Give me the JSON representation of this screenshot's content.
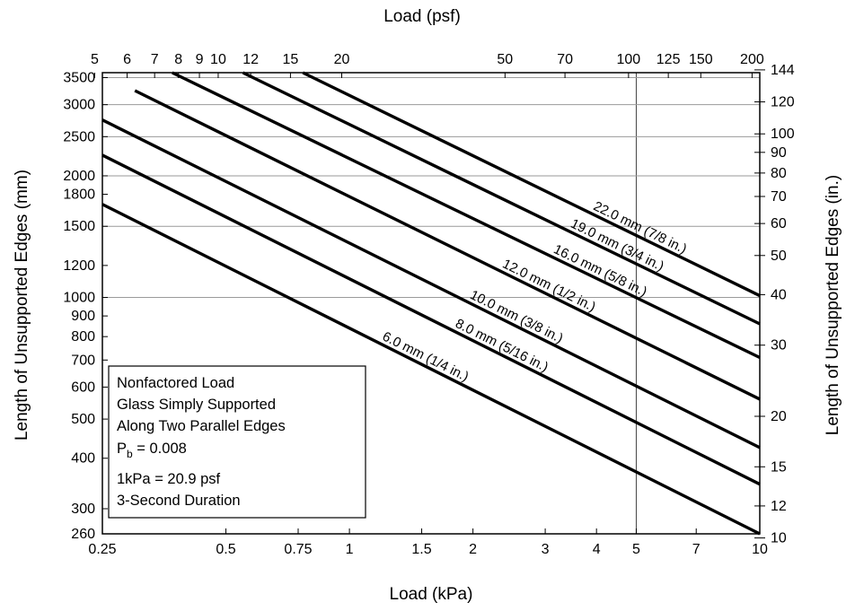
{
  "chart_data": {
    "type": "line",
    "x_scale": "log",
    "y_scale": "log",
    "grid": true,
    "xlabel_bottom": "Load (kPa)",
    "xlabel_top": "Load (psf)",
    "ylabel_left": "Length of Unsupported Edges (mm)",
    "ylabel_right": "Length of Unsupported Edges (in.)",
    "xlim": [
      0.25,
      10
    ],
    "ylim": [
      260,
      3600
    ],
    "x_ticks_bottom": [
      {
        "value": 0.25,
        "label": "0.25"
      },
      {
        "value": 0.5,
        "label": "0.5"
      },
      {
        "value": 0.75,
        "label": "0.75"
      },
      {
        "value": 1,
        "label": "1"
      },
      {
        "value": 1.5,
        "label": "1.5"
      },
      {
        "value": 2,
        "label": "2"
      },
      {
        "value": 3,
        "label": "3"
      },
      {
        "value": 4,
        "label": "4"
      },
      {
        "value": 5,
        "label": "5"
      },
      {
        "value": 7,
        "label": "7"
      },
      {
        "value": 10,
        "label": "10"
      }
    ],
    "x_ticks_top": [
      {
        "value": 5,
        "label": "5"
      },
      {
        "value": 6,
        "label": "6"
      },
      {
        "value": 7,
        "label": "7"
      },
      {
        "value": 8,
        "label": "8"
      },
      {
        "value": 9,
        "label": "9"
      },
      {
        "value": 10,
        "label": "10"
      },
      {
        "value": 12,
        "label": "12"
      },
      {
        "value": 15,
        "label": "15"
      },
      {
        "value": 20,
        "label": "20"
      },
      {
        "value": 50,
        "label": "50"
      },
      {
        "value": 70,
        "label": "70"
      },
      {
        "value": 100,
        "label": "100"
      },
      {
        "value": 125,
        "label": "125"
      },
      {
        "value": 150,
        "label": "150"
      },
      {
        "value": 200,
        "label": "200"
      }
    ],
    "y_ticks_left": [
      {
        "value": 260,
        "label": "260"
      },
      {
        "value": 300,
        "label": "300"
      },
      {
        "value": 400,
        "label": "400"
      },
      {
        "value": 500,
        "label": "500"
      },
      {
        "value": 600,
        "label": "600"
      },
      {
        "value": 700,
        "label": "700"
      },
      {
        "value": 800,
        "label": "800"
      },
      {
        "value": 900,
        "label": "900"
      },
      {
        "value": 1000,
        "label": "1000"
      },
      {
        "value": 1200,
        "label": "1200"
      },
      {
        "value": 1500,
        "label": "1500"
      },
      {
        "value": 1800,
        "label": "1800"
      },
      {
        "value": 2000,
        "label": "2000"
      },
      {
        "value": 2500,
        "label": "2500"
      },
      {
        "value": 3000,
        "label": "3000"
      },
      {
        "value": 3500,
        "label": "3500"
      }
    ],
    "y_ticks_right": [
      {
        "value": 10,
        "label": "10"
      },
      {
        "value": 12,
        "label": "12"
      },
      {
        "value": 15,
        "label": "15"
      },
      {
        "value": 20,
        "label": "20"
      },
      {
        "value": 30,
        "label": "30"
      },
      {
        "value": 40,
        "label": "40"
      },
      {
        "value": 50,
        "label": "50"
      },
      {
        "value": 60,
        "label": "60"
      },
      {
        "value": 70,
        "label": "70"
      },
      {
        "value": 80,
        "label": "80"
      },
      {
        "value": 90,
        "label": "90"
      },
      {
        "value": 100,
        "label": "100"
      },
      {
        "value": 120,
        "label": "120"
      },
      {
        "value": 144,
        "label": "144"
      }
    ],
    "x_gridlines": [
      5
    ],
    "y_gridlines": [
      1000,
      1500,
      2000,
      2500,
      3000,
      3500
    ],
    "series": [
      {
        "name": "6.0 mm (1/4 in.)",
        "x": [
          0.25,
          10
        ],
        "y": [
          1700,
          260
        ],
        "label_at": 1.5
      },
      {
        "name": "8.0 mm (5/16 in.)",
        "x": [
          0.25,
          10
        ],
        "y": [
          2250,
          345
        ],
        "label_at": 2.3
      },
      {
        "name": "10.0 mm (3/8 in.)",
        "x": [
          0.25,
          10
        ],
        "y": [
          2750,
          425
        ],
        "label_at": 2.5
      },
      {
        "name": "12.0 mm (1/2 in.)",
        "x": [
          0.3,
          10
        ],
        "y": [
          3250,
          560
        ],
        "label_at": 3.0
      },
      {
        "name": "16.0 mm (5/8 in.)",
        "x": [
          0.37,
          10
        ],
        "y": [
          3600,
          710
        ],
        "label_at": 4.0
      },
      {
        "name": "19.0 mm (3/4 in.)",
        "x": [
          0.55,
          10
        ],
        "y": [
          3600,
          860
        ],
        "label_at": 4.4
      },
      {
        "name": "22.0 mm (7/8 in.)",
        "x": [
          0.77,
          10
        ],
        "y": [
          3600,
          1010
        ],
        "label_at": 5.0
      }
    ],
    "legend": {
      "placement": "bottom-left",
      "lines": [
        "Nonfactored Load",
        "Glass Simply Supported",
        "Along Two Parallel Edges",
        "P_b = 0.008",
        "1kPa = 20.9 psf",
        "3-Second Duration"
      ]
    }
  }
}
